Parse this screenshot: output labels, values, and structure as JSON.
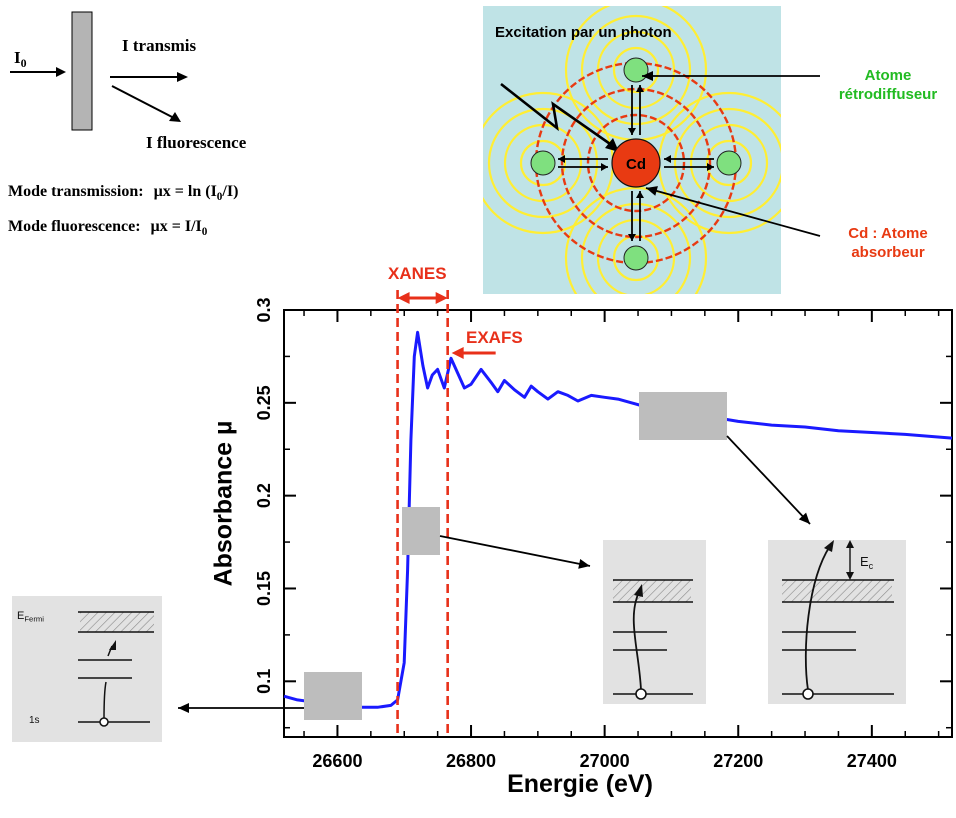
{
  "schema": {
    "incident_label": "I",
    "incident_sub": "0",
    "transmitted_label": "I transmis",
    "fluorescence_label": "I fluorescence"
  },
  "formulas": {
    "transmission_label": "Mode transmission:",
    "transmission_eq_pre": "µx = ln (I",
    "transmission_eq_sub": "0",
    "transmission_eq_post": "/I)",
    "fluorescence_label": "Mode fluorescence:",
    "fluorescence_eq_pre": "µx = I/I",
    "fluorescence_eq_sub": "0"
  },
  "excitation_panel": {
    "title": "Excitation par un photon",
    "center_atom": "Cd",
    "backscatter_label_1": "Atome",
    "backscatter_label_2": "rétrodiffuseur",
    "absorber_label_1": "Cd : Atome",
    "absorber_label_2": "absorbeur",
    "colors": {
      "background": "#bfe3e6",
      "absorber": "#e83a12",
      "backscatter": "#7fe07f",
      "waves": "#ffee33",
      "shell": "#e83a12",
      "label_green": "#22bb22",
      "label_red": "#e83a12"
    }
  },
  "regions": {
    "xanes": "XANES",
    "exafs": "EXAFS",
    "color": "#e8301a"
  },
  "chart_data": {
    "type": "line",
    "title": "",
    "xlabel": "Energie (eV)",
    "ylabel": "Absorbance µ",
    "xlim": [
      26520,
      27520
    ],
    "ylim": [
      0.07,
      0.3
    ],
    "xticks": [
      26600,
      26800,
      27000,
      27200,
      27400
    ],
    "yticks": [
      0.1,
      0.15,
      0.2,
      0.25,
      0.3
    ],
    "ytick_labels": [
      "0.1",
      "0.15",
      "0.2",
      "0.25",
      "0.3"
    ],
    "grid": false,
    "series": [
      {
        "color": "#1a1aff",
        "x": [
          26520,
          26540,
          26560,
          26580,
          26600,
          26620,
          26640,
          26660,
          26680,
          26690,
          26700,
          26705,
          26710,
          26715,
          26720,
          26728,
          26735,
          26742,
          26750,
          26760,
          26770,
          26780,
          26790,
          26800,
          26815,
          26830,
          26840,
          26850,
          26865,
          26880,
          26890,
          26900,
          26915,
          26930,
          26945,
          26960,
          26980,
          27000,
          27020,
          27040,
          27060,
          27100,
          27150,
          27200,
          27250,
          27300,
          27350,
          27400,
          27450,
          27520
        ],
        "y": [
          0.092,
          0.09,
          0.089,
          0.088,
          0.087,
          0.086,
          0.086,
          0.086,
          0.087,
          0.09,
          0.11,
          0.16,
          0.23,
          0.275,
          0.288,
          0.27,
          0.258,
          0.265,
          0.268,
          0.258,
          0.274,
          0.266,
          0.258,
          0.26,
          0.268,
          0.261,
          0.256,
          0.262,
          0.257,
          0.253,
          0.259,
          0.256,
          0.252,
          0.256,
          0.254,
          0.251,
          0.254,
          0.253,
          0.252,
          0.25,
          0.248,
          0.246,
          0.243,
          0.24,
          0.238,
          0.237,
          0.235,
          0.234,
          0.233,
          0.231
        ]
      }
    ],
    "region_boundaries_ev": [
      26690,
      26765
    ]
  },
  "insets": {
    "fermi_label": "E",
    "fermi_sub": "Fermi",
    "core_label": "1s",
    "ec_label": "E",
    "ec_sub": "c"
  }
}
